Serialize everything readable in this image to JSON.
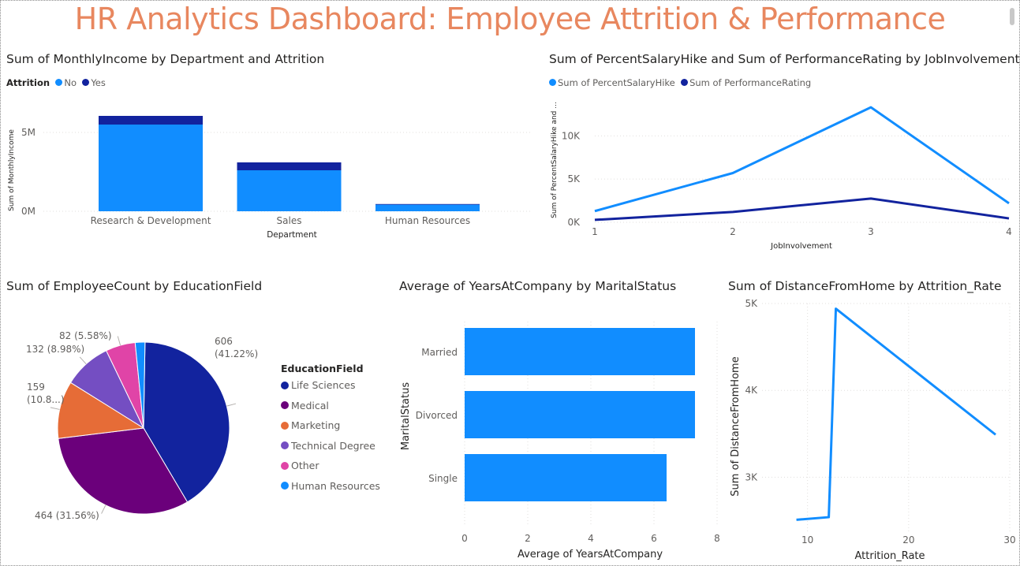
{
  "dashboard_title": "HR Analytics Dashboard: Employee Attrition & Performance",
  "chart_data": [
    {
      "id": "income",
      "type": "bar",
      "stacked": true,
      "title": "Sum of MonthlyIncome by Department and Attrition",
      "legend_title": "Attrition",
      "categories": [
        "Research & Development",
        "Sales",
        "Human Resources"
      ],
      "series": [
        {
          "name": "No",
          "color": "#118DFF",
          "values": [
            5500000,
            2600000,
            420000
          ]
        },
        {
          "name": "Yes",
          "color": "#12239E",
          "values": [
            550000,
            500000,
            40000
          ]
        }
      ],
      "xlabel": "Department",
      "ylabel": "Sum of MonthlyIncome",
      "yticks": [
        "0M",
        "5M"
      ],
      "ylim": [
        0,
        7400000
      ],
      "grid": true
    },
    {
      "id": "hike",
      "type": "line",
      "title": "Sum of PercentSalaryHike and Sum of PerformanceRating by JobInvolvement",
      "x": [
        1,
        2,
        3,
        4
      ],
      "series": [
        {
          "name": "Sum of PercentSalaryHike",
          "color": "#118DFF",
          "values": [
            1300,
            5700,
            13300,
            2200
          ]
        },
        {
          "name": "Sum of PerformanceRating",
          "color": "#12239E",
          "values": [
            280,
            1200,
            2750,
            450
          ]
        }
      ],
      "xlabel": "JobInvolvement",
      "ylabel": "Sum of PercentSalaryHike and ...",
      "yticks": [
        "0K",
        "5K",
        "10K"
      ],
      "ylim": [
        0,
        14500
      ],
      "grid": true
    },
    {
      "id": "education",
      "type": "pie",
      "title": "Sum of EmployeeCount by EducationField",
      "legend_title": "EducationField",
      "slices": [
        {
          "name": "Life Sciences",
          "value": 606,
          "color": "#12239E",
          "label": "606\n(41.22%)"
        },
        {
          "name": "Medical",
          "value": 464,
          "color": "#6B007B",
          "label": "464 (31.56%)"
        },
        {
          "name": "Marketing",
          "value": 159,
          "color": "#E66C37",
          "label": "159\n(10.8...)"
        },
        {
          "name": "Technical Degree",
          "value": 132,
          "color": "#744EC2",
          "label": "132 (8.98%)"
        },
        {
          "name": "Other",
          "value": 82,
          "color": "#E044A7",
          "label": "82 (5.58%)"
        },
        {
          "name": "Human Resources",
          "value": 27,
          "color": "#118DFF",
          "label": ""
        }
      ]
    },
    {
      "id": "years",
      "type": "bar",
      "orientation": "horizontal",
      "title": "Average of YearsAtCompany by MaritalStatus",
      "categories": [
        "Married",
        "Divorced",
        "Single"
      ],
      "values": [
        7.3,
        7.3,
        6.4
      ],
      "color": "#118DFF",
      "xlabel": "Average of YearsAtCompany",
      "ylabel": "MaritalStatus",
      "xticks": [
        0,
        2,
        4,
        6,
        8
      ],
      "xlim": [
        0,
        8
      ],
      "grid": true
    },
    {
      "id": "distance",
      "type": "line",
      "title": "Sum of DistanceFromHome by Attrition_Rate",
      "points": [
        [
          8.9,
          2510
        ],
        [
          12.1,
          2540
        ],
        [
          12.8,
          4940
        ],
        [
          28.6,
          3490
        ]
      ],
      "color": "#118DFF",
      "xlabel": "Attrition_Rate",
      "ylabel": "Sum of DistanceFromHome",
      "xticks": [
        10,
        20,
        30
      ],
      "yticks": [
        "3K",
        "4K",
        "5K"
      ],
      "xlim": [
        5.5,
        30
      ],
      "ylim": [
        2350,
        5000
      ],
      "grid": true
    }
  ]
}
